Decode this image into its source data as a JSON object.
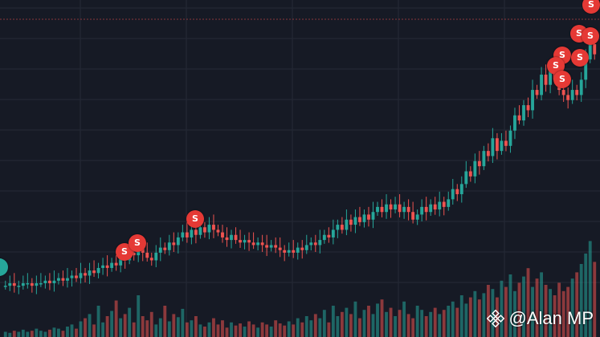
{
  "colors": {
    "background": "#161a25",
    "grid": "#252a37",
    "up": "#26a69a",
    "down": "#ef5350",
    "sell_badge": "#e53935",
    "buy_badge": "#26a69a",
    "price_line": "#ef5350"
  },
  "watermark": {
    "text": "@Alan MP",
    "icon": "binance-logo-icon"
  },
  "sell_marker_label": "S",
  "chart_data": {
    "type": "candlestick",
    "candles": [
      [
        0.05,
        0.05
      ],
      [
        0.05,
        0.06
      ],
      [
        0.06,
        0.05
      ],
      [
        0.05,
        0.05
      ],
      [
        0.05,
        0.06
      ],
      [
        0.06,
        0.06
      ],
      [
        0.06,
        0.05
      ],
      [
        0.05,
        0.06
      ],
      [
        0.06,
        0.06
      ],
      [
        0.06,
        0.07
      ],
      [
        0.07,
        0.06
      ],
      [
        0.06,
        0.07
      ],
      [
        0.07,
        0.08
      ],
      [
        0.08,
        0.07
      ],
      [
        0.07,
        0.08
      ],
      [
        0.08,
        0.09
      ],
      [
        0.09,
        0.08
      ],
      [
        0.08,
        0.1
      ],
      [
        0.1,
        0.09
      ],
      [
        0.09,
        0.11
      ],
      [
        0.11,
        0.1
      ],
      [
        0.1,
        0.12
      ],
      [
        0.12,
        0.13
      ],
      [
        0.13,
        0.12
      ],
      [
        0.12,
        0.14
      ],
      [
        0.14,
        0.13
      ],
      [
        0.13,
        0.16
      ],
      [
        0.16,
        0.15
      ],
      [
        0.15,
        0.18
      ],
      [
        0.18,
        0.17
      ],
      [
        0.17,
        0.2
      ],
      [
        0.2,
        0.18
      ],
      [
        0.18,
        0.16
      ],
      [
        0.16,
        0.15
      ],
      [
        0.15,
        0.18
      ],
      [
        0.18,
        0.2
      ],
      [
        0.2,
        0.19
      ],
      [
        0.19,
        0.22
      ],
      [
        0.22,
        0.21
      ],
      [
        0.21,
        0.24
      ],
      [
        0.24,
        0.26
      ],
      [
        0.26,
        0.24
      ],
      [
        0.24,
        0.27
      ],
      [
        0.27,
        0.25
      ],
      [
        0.25,
        0.28
      ],
      [
        0.28,
        0.26
      ],
      [
        0.26,
        0.29
      ],
      [
        0.29,
        0.27
      ],
      [
        0.27,
        0.26
      ],
      [
        0.26,
        0.24
      ],
      [
        0.24,
        0.23
      ],
      [
        0.23,
        0.25
      ],
      [
        0.25,
        0.23
      ],
      [
        0.23,
        0.22
      ],
      [
        0.22,
        0.23
      ],
      [
        0.23,
        0.22
      ],
      [
        0.22,
        0.21
      ],
      [
        0.21,
        0.22
      ],
      [
        0.22,
        0.21
      ],
      [
        0.21,
        0.2
      ],
      [
        0.2,
        0.21
      ],
      [
        0.21,
        0.2
      ],
      [
        0.2,
        0.19
      ],
      [
        0.19,
        0.18
      ],
      [
        0.18,
        0.19
      ],
      [
        0.19,
        0.18
      ],
      [
        0.18,
        0.2
      ],
      [
        0.2,
        0.19
      ],
      [
        0.19,
        0.21
      ],
      [
        0.21,
        0.22
      ],
      [
        0.22,
        0.21
      ],
      [
        0.21,
        0.23
      ],
      [
        0.23,
        0.25
      ],
      [
        0.25,
        0.24
      ],
      [
        0.24,
        0.27
      ],
      [
        0.27,
        0.29
      ],
      [
        0.29,
        0.27
      ],
      [
        0.27,
        0.31
      ],
      [
        0.31,
        0.29
      ],
      [
        0.29,
        0.32
      ],
      [
        0.32,
        0.3
      ],
      [
        0.3,
        0.33
      ],
      [
        0.33,
        0.31
      ],
      [
        0.31,
        0.34
      ],
      [
        0.34,
        0.36
      ],
      [
        0.36,
        0.34
      ],
      [
        0.34,
        0.37
      ],
      [
        0.37,
        0.35
      ],
      [
        0.35,
        0.37
      ],
      [
        0.37,
        0.34
      ],
      [
        0.34,
        0.36
      ],
      [
        0.36,
        0.34
      ],
      [
        0.34,
        0.31
      ],
      [
        0.31,
        0.33
      ],
      [
        0.33,
        0.36
      ],
      [
        0.36,
        0.34
      ],
      [
        0.34,
        0.37
      ],
      [
        0.37,
        0.35
      ],
      [
        0.35,
        0.38
      ],
      [
        0.38,
        0.36
      ],
      [
        0.36,
        0.39
      ],
      [
        0.39,
        0.43
      ],
      [
        0.43,
        0.41
      ],
      [
        0.41,
        0.45
      ],
      [
        0.45,
        0.5
      ],
      [
        0.5,
        0.48
      ],
      [
        0.48,
        0.54
      ],
      [
        0.54,
        0.52
      ],
      [
        0.52,
        0.58
      ],
      [
        0.58,
        0.56
      ],
      [
        0.56,
        0.63
      ],
      [
        0.63,
        0.58
      ],
      [
        0.58,
        0.62
      ],
      [
        0.62,
        0.6
      ],
      [
        0.6,
        0.66
      ],
      [
        0.66,
        0.72
      ],
      [
        0.72,
        0.7
      ],
      [
        0.7,
        0.76
      ],
      [
        0.76,
        0.74
      ],
      [
        0.74,
        0.82
      ],
      [
        0.82,
        0.8
      ],
      [
        0.8,
        0.88
      ],
      [
        0.88,
        0.84
      ],
      [
        0.84,
        0.9
      ],
      [
        0.9,
        0.86
      ],
      [
        0.86,
        0.82
      ],
      [
        0.82,
        0.8
      ],
      [
        0.8,
        0.78
      ],
      [
        0.78,
        0.82
      ],
      [
        0.82,
        0.8
      ],
      [
        0.8,
        0.86
      ],
      [
        0.86,
        0.94
      ],
      [
        0.94,
        1.0
      ],
      [
        1.0,
        0.96
      ]
    ],
    "volumes": [
      0.05,
      0.04,
      0.06,
      0.05,
      0.07,
      0.05,
      0.06,
      0.08,
      0.06,
      0.05,
      0.07,
      0.09,
      0.08,
      0.06,
      0.1,
      0.12,
      0.08,
      0.15,
      0.18,
      0.22,
      0.12,
      0.3,
      0.14,
      0.2,
      0.25,
      0.35,
      0.18,
      0.22,
      0.28,
      0.14,
      0.4,
      0.2,
      0.16,
      0.24,
      0.12,
      0.18,
      0.3,
      0.15,
      0.22,
      0.19,
      0.27,
      0.14,
      0.16,
      0.2,
      0.12,
      0.1,
      0.14,
      0.18,
      0.12,
      0.16,
      0.09,
      0.14,
      0.11,
      0.13,
      0.1,
      0.15,
      0.12,
      0.09,
      0.14,
      0.12,
      0.1,
      0.16,
      0.13,
      0.11,
      0.15,
      0.12,
      0.18,
      0.14,
      0.2,
      0.16,
      0.22,
      0.18,
      0.26,
      0.14,
      0.3,
      0.2,
      0.24,
      0.28,
      0.22,
      0.34,
      0.18,
      0.26,
      0.3,
      0.22,
      0.32,
      0.36,
      0.24,
      0.28,
      0.2,
      0.26,
      0.34,
      0.22,
      0.18,
      0.3,
      0.26,
      0.2,
      0.24,
      0.28,
      0.22,
      0.26,
      0.3,
      0.34,
      0.28,
      0.4,
      0.32,
      0.38,
      0.44,
      0.36,
      0.42,
      0.5,
      0.46,
      0.38,
      0.54,
      0.48,
      0.6,
      0.44,
      0.52,
      0.58,
      0.66,
      0.48,
      0.56,
      0.62,
      0.5,
      0.46,
      0.4,
      0.52,
      0.44,
      0.48,
      0.56,
      0.62,
      0.7,
      0.8,
      0.92,
      0.72
    ],
    "grid": true
  }
}
